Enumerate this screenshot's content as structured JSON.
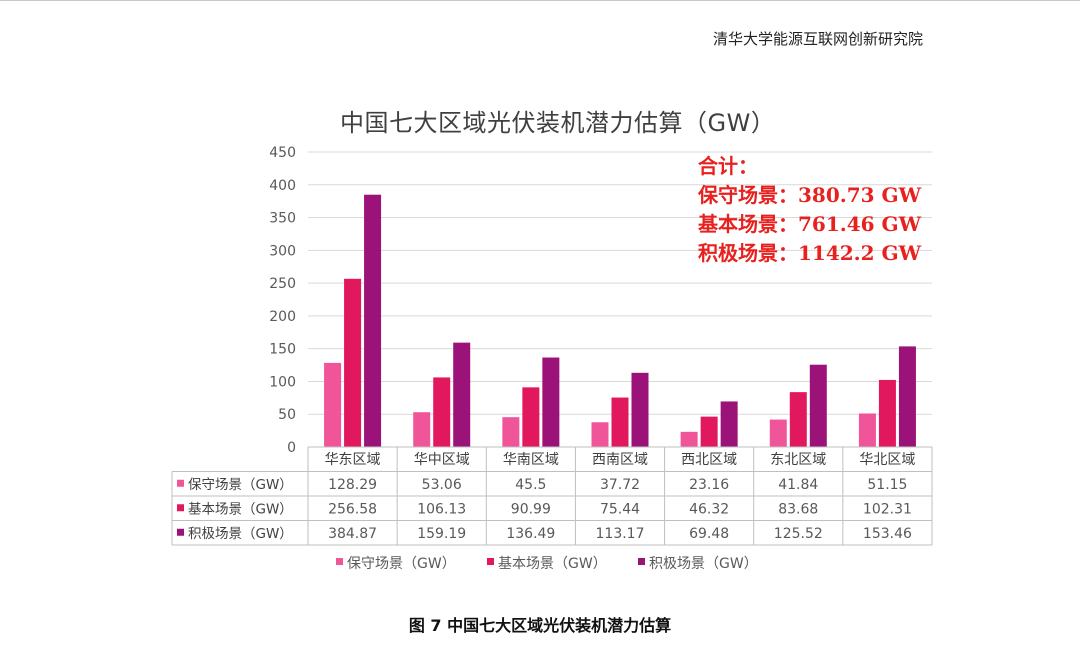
{
  "header": {
    "org": "清华大学能源互联网创新研究院"
  },
  "caption": "图 7 中国七大区域光伏装机潜力估算",
  "totals": {
    "title": "合计：",
    "rows": [
      "保守场景：380.73 GW",
      "基本场景：761.46 GW",
      "积极场景：1142.2 GW"
    ]
  },
  "chart_data": {
    "type": "bar",
    "title": "中国七大区域光伏装机潜力估算（GW）",
    "categories": [
      "华东区域",
      "华中区域",
      "华南区域",
      "西南区域",
      "西北区域",
      "东北区域",
      "华北区域"
    ],
    "series": [
      {
        "name": "保守场景（GW）",
        "color": "#f0559a",
        "values": [
          128.29,
          53.06,
          45.5,
          37.72,
          23.16,
          41.84,
          51.15
        ]
      },
      {
        "name": "基本场景（GW）",
        "color": "#e2185f",
        "values": [
          256.58,
          106.13,
          90.99,
          75.44,
          46.32,
          83.68,
          102.31
        ]
      },
      {
        "name": "积极场景（GW）",
        "color": "#9b1278",
        "values": [
          384.87,
          159.19,
          136.49,
          113.17,
          69.48,
          125.52,
          153.46
        ]
      }
    ],
    "value_labels": [
      [
        "128.29",
        "53.06",
        "45.5",
        "37.72",
        "23.16",
        "41.84",
        "51.15"
      ],
      [
        "256.58",
        "106.13",
        "90.99",
        "75.44",
        "46.32",
        "83.68",
        "102.31"
      ],
      [
        "384.87",
        "159.19",
        "136.49",
        "113.17",
        "69.48",
        "125.52",
        "153.46"
      ]
    ],
    "y_ticks": [
      "0",
      "50",
      "100",
      "150",
      "200",
      "250",
      "300",
      "350",
      "400",
      "450"
    ],
    "ylim": [
      0,
      450
    ],
    "grid": true,
    "legend": "bottom",
    "data_table": true
  }
}
